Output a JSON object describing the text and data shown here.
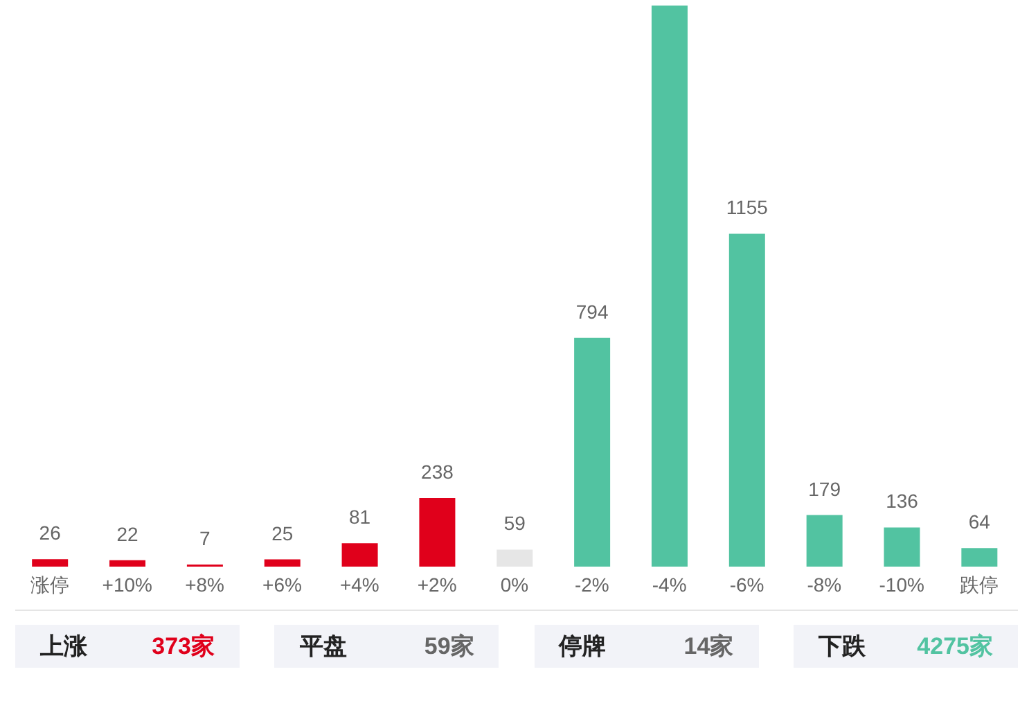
{
  "chart_data": {
    "type": "bar",
    "categories": [
      "涨停",
      "+10%",
      "+8%",
      "+6%",
      "+4%",
      "+2%",
      "0%",
      "-2%",
      "-4%",
      "-6%",
      "-8%",
      "-10%",
      "跌停"
    ],
    "values": [
      26,
      22,
      7,
      25,
      81,
      238,
      59,
      794,
      1947,
      1155,
      179,
      136,
      64
    ],
    "value_labels": [
      "26",
      "22",
      "7",
      "25",
      "81",
      "238",
      "59",
      "794",
      null,
      "1155",
      "179",
      "136",
      "64"
    ],
    "colors": [
      "#e0001b",
      "#e0001b",
      "#e0001b",
      "#e0001b",
      "#e0001b",
      "#e0001b",
      "#e6e6e6",
      "#52c3a1",
      "#52c3a1",
      "#52c3a1",
      "#52c3a1",
      "#52c3a1",
      "#52c3a1"
    ],
    "annotations": [
      "上涨",
      "373家",
      "平盘",
      "59家",
      "停牌",
      "14家",
      "下跌",
      "4275家"
    ]
  }
}
